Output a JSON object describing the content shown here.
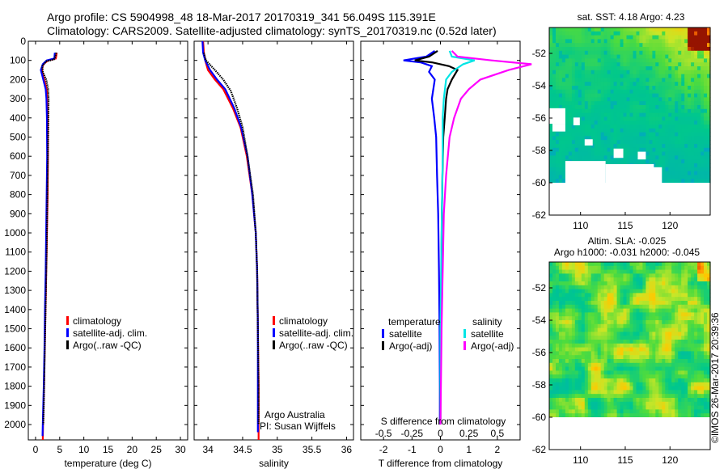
{
  "header": {
    "line1": "Argo profile: CS 5904998_48 18-Mar-2017 20170319_341 56.049S 115.391E",
    "line2": "Climatology: CARS2009. Satellite-adjusted climatology: synTS_20170319.nc (0.52d later)"
  },
  "credit": "©IMOS 26-Mar-2017 20:39:36",
  "colors": {
    "climatology": "#ff0000",
    "satellite": "#0000ff",
    "argo": "#000000",
    "sat_salinity": "#00e5e5",
    "argo_salinity": "#ff00ff"
  },
  "chart_data": [
    {
      "type": "line",
      "id": "temperature-profile",
      "xlabel": "temperature (deg C)",
      "ylabel": "",
      "xlim": [
        -1.5,
        31.5
      ],
      "ylim": [
        2080,
        0
      ],
      "xticks": [
        0,
        5,
        10,
        15,
        20,
        25,
        30
      ],
      "yticks": [
        0,
        100,
        200,
        300,
        400,
        500,
        600,
        700,
        800,
        900,
        1000,
        1100,
        1200,
        1300,
        1400,
        1500,
        1600,
        1700,
        1800,
        1900,
        2000
      ],
      "legend": [
        "climatology",
        "satellite-adj. clim.",
        "Argo(..raw -QC)"
      ],
      "series": [
        {
          "name": "climatology",
          "points": [
            [
              4.4,
              60
            ],
            [
              4.2,
              90
            ],
            [
              2.6,
              100
            ],
            [
              1.6,
              120
            ],
            [
              1.3,
              150
            ],
            [
              1.8,
              200
            ],
            [
              2.3,
              250
            ],
            [
              2.4,
              300
            ],
            [
              2.5,
              400
            ],
            [
              2.55,
              600
            ],
            [
              2.5,
              800
            ],
            [
              2.35,
              1000
            ],
            [
              2.2,
              1200
            ],
            [
              2.05,
              1400
            ],
            [
              1.9,
              1600
            ],
            [
              1.75,
              1800
            ],
            [
              1.55,
              2000
            ],
            [
              1.5,
              2080
            ]
          ]
        },
        {
          "name": "satellite-adj. clim.",
          "points": [
            [
              4.0,
              60
            ],
            [
              3.9,
              90
            ],
            [
              2.3,
              100
            ],
            [
              1.5,
              120
            ],
            [
              1.1,
              150
            ],
            [
              1.6,
              200
            ],
            [
              2.1,
              250
            ],
            [
              2.25,
              300
            ],
            [
              2.35,
              400
            ],
            [
              2.4,
              600
            ],
            [
              2.3,
              800
            ],
            [
              2.2,
              1000
            ],
            [
              2.1,
              1200
            ],
            [
              1.95,
              1400
            ],
            [
              1.85,
              1600
            ],
            [
              1.7,
              1800
            ],
            [
              1.5,
              2000
            ],
            [
              1.45,
              2060
            ]
          ]
        },
        {
          "name": "Argo(..raw -QC)",
          "points": [
            [
              4.3,
              60
            ],
            [
              4.1,
              80
            ],
            [
              3.8,
              95
            ],
            [
              2.2,
              105
            ],
            [
              1.4,
              130
            ],
            [
              1.5,
              160
            ],
            [
              2.2,
              200
            ],
            [
              2.6,
              250
            ],
            [
              2.7,
              300
            ],
            [
              2.65,
              400
            ],
            [
              2.6,
              500
            ],
            [
              2.5,
              700
            ],
            [
              2.4,
              900
            ],
            [
              2.3,
              1100
            ],
            [
              2.15,
              1300
            ],
            [
              2.0,
              1500
            ],
            [
              1.85,
              1700
            ],
            [
              1.7,
              1900
            ],
            [
              1.6,
              2000
            ]
          ]
        }
      ]
    },
    {
      "type": "line",
      "id": "salinity-profile",
      "xlabel": "salinity",
      "xlim": [
        33.8,
        36.1
      ],
      "ylim": [
        2080,
        0
      ],
      "xticks": [
        34,
        34.5,
        35,
        35.5,
        36
      ],
      "xticklabels": [
        "34",
        "34.5",
        "35",
        "35.5",
        "36"
      ],
      "legend": [
        "climatology",
        "satellite-adj. clim.",
        "Argo(..raw -QC)"
      ],
      "annotation": [
        "Argo Australia",
        "PI: Susan Wijffels"
      ],
      "series": [
        {
          "name": "climatology",
          "points": [
            [
              33.93,
              0
            ],
            [
              33.94,
              60
            ],
            [
              33.96,
              100
            ],
            [
              34.0,
              150
            ],
            [
              34.1,
              200
            ],
            [
              34.22,
              250
            ],
            [
              34.36,
              350
            ],
            [
              34.47,
              450
            ],
            [
              34.56,
              600
            ],
            [
              34.64,
              800
            ],
            [
              34.69,
              1000
            ],
            [
              34.71,
              1200
            ],
            [
              34.72,
              1500
            ],
            [
              34.73,
              1800
            ],
            [
              34.73,
              2080
            ]
          ]
        },
        {
          "name": "satellite-adj. clim.",
          "points": [
            [
              33.92,
              0
            ],
            [
              33.93,
              60
            ],
            [
              33.96,
              100
            ],
            [
              34.03,
              150
            ],
            [
              34.13,
              200
            ],
            [
              34.25,
              250
            ],
            [
              34.38,
              350
            ],
            [
              34.48,
              450
            ],
            [
              34.57,
              600
            ],
            [
              34.64,
              800
            ],
            [
              34.69,
              1000
            ],
            [
              34.71,
              1200
            ],
            [
              34.72,
              1500
            ],
            [
              34.72,
              1800
            ],
            [
              34.72,
              2040
            ]
          ]
        },
        {
          "name": "Argo(..raw -QC)",
          "points": [
            [
              33.94,
              60
            ],
            [
              33.97,
              100
            ],
            [
              34.1,
              150
            ],
            [
              34.22,
              200
            ],
            [
              34.33,
              260
            ],
            [
              34.42,
              350
            ],
            [
              34.5,
              450
            ],
            [
              34.57,
              600
            ],
            [
              34.65,
              800
            ],
            [
              34.69,
              1000
            ],
            [
              34.71,
              1200
            ],
            [
              34.72,
              1500
            ],
            [
              34.73,
              1800
            ],
            [
              34.73,
              2000
            ]
          ]
        }
      ]
    },
    {
      "type": "line",
      "id": "difference-profile",
      "xlabel": "T difference from climatology",
      "top_label": "S difference from climatology",
      "xlim": [
        -2.8,
        2.8
      ],
      "ylim": [
        2080,
        0
      ],
      "xticks": [
        -2,
        -1,
        0,
        1,
        2
      ],
      "top_ticks": [
        -0.5,
        -0.25,
        0,
        0.25,
        0.5
      ],
      "legend": {
        "temperature_title": "temperature",
        "salinity_title": "salinity",
        "temperature": [
          "satellite",
          "Argo(-adj)"
        ],
        "salinity": [
          "satellite",
          "Argo(-adj)"
        ]
      },
      "series": [
        {
          "name": "temperature satellite",
          "points": [
            [
              -0.2,
              50
            ],
            [
              -0.5,
              80
            ],
            [
              -1.3,
              100
            ],
            [
              -0.7,
              110
            ],
            [
              -0.3,
              130
            ],
            [
              -0.4,
              160
            ],
            [
              -0.2,
              200
            ],
            [
              -0.25,
              250
            ],
            [
              -0.3,
              300
            ],
            [
              -0.22,
              400
            ],
            [
              -0.15,
              500
            ],
            [
              -0.12,
              700
            ],
            [
              -0.08,
              900
            ],
            [
              -0.05,
              1200
            ],
            [
              -0.03,
              1500
            ],
            [
              -0.02,
              1800
            ],
            [
              -0.02,
              2000
            ]
          ]
        },
        {
          "name": "temperature Argo(-adj)",
          "points": [
            [
              -0.1,
              50
            ],
            [
              -0.4,
              80
            ],
            [
              -0.9,
              100
            ],
            [
              -0.3,
              110
            ],
            [
              0.3,
              130
            ],
            [
              0.6,
              150
            ],
            [
              0.4,
              200
            ],
            [
              0.25,
              250
            ],
            [
              0.2,
              300
            ],
            [
              0.15,
              400
            ],
            [
              0.1,
              500
            ],
            [
              0.07,
              700
            ],
            [
              0.05,
              900
            ],
            [
              0.03,
              1200
            ],
            [
              0.02,
              1500
            ],
            [
              0.0,
              1800
            ],
            [
              0.0,
              2000
            ]
          ]
        },
        {
          "name": "salinity satellite",
          "points": [
            [
              0.08,
              50
            ],
            [
              0.1,
              80
            ],
            [
              0.3,
              100
            ],
            [
              0.2,
              120
            ],
            [
              0.1,
              160
            ],
            [
              0.05,
              200
            ],
            [
              0.04,
              250
            ],
            [
              0.03,
              300
            ],
            [
              0.02,
              400
            ],
            [
              0.02,
              600
            ],
            [
              0.01,
              1000
            ],
            [
              0.0,
              1500
            ],
            [
              0.0,
              2000
            ]
          ]
        },
        {
          "name": "salinity Argo(-adj)",
          "points": [
            [
              0.1,
              50
            ],
            [
              0.15,
              80
            ],
            [
              0.45,
              100
            ],
            [
              0.8,
              120
            ],
            [
              0.6,
              150
            ],
            [
              0.35,
              200
            ],
            [
              0.25,
              250
            ],
            [
              0.18,
              300
            ],
            [
              0.12,
              400
            ],
            [
              0.08,
              500
            ],
            [
              0.05,
              700
            ],
            [
              0.03,
              900
            ],
            [
              0.02,
              1200
            ],
            [
              0.01,
              1500
            ],
            [
              0.0,
              2000
            ]
          ]
        }
      ]
    },
    {
      "type": "heatmap",
      "id": "sst-map",
      "title": "sat. SST: 4.18 Argo: 4.23",
      "xlim": [
        106.5,
        124.5
      ],
      "ylim": [
        -62,
        -50.4
      ],
      "xticks": [
        110,
        115,
        120
      ],
      "yticks": [
        -52,
        -54,
        -56,
        -58,
        -60,
        -62
      ],
      "land_mask_below": -60
    },
    {
      "type": "heatmap",
      "id": "sla-map",
      "title_line1": "Altim. SLA: -0.025",
      "title_line2": "Argo h1000: -0.031 h2000: -0.045",
      "xlim": [
        106.5,
        124.5
      ],
      "ylim": [
        -62,
        -50.4
      ],
      "xticks": [
        110,
        115,
        120
      ],
      "yticks": [
        -52,
        -54,
        -56,
        -58,
        -60,
        -62
      ],
      "land_mask_below": -60
    }
  ]
}
